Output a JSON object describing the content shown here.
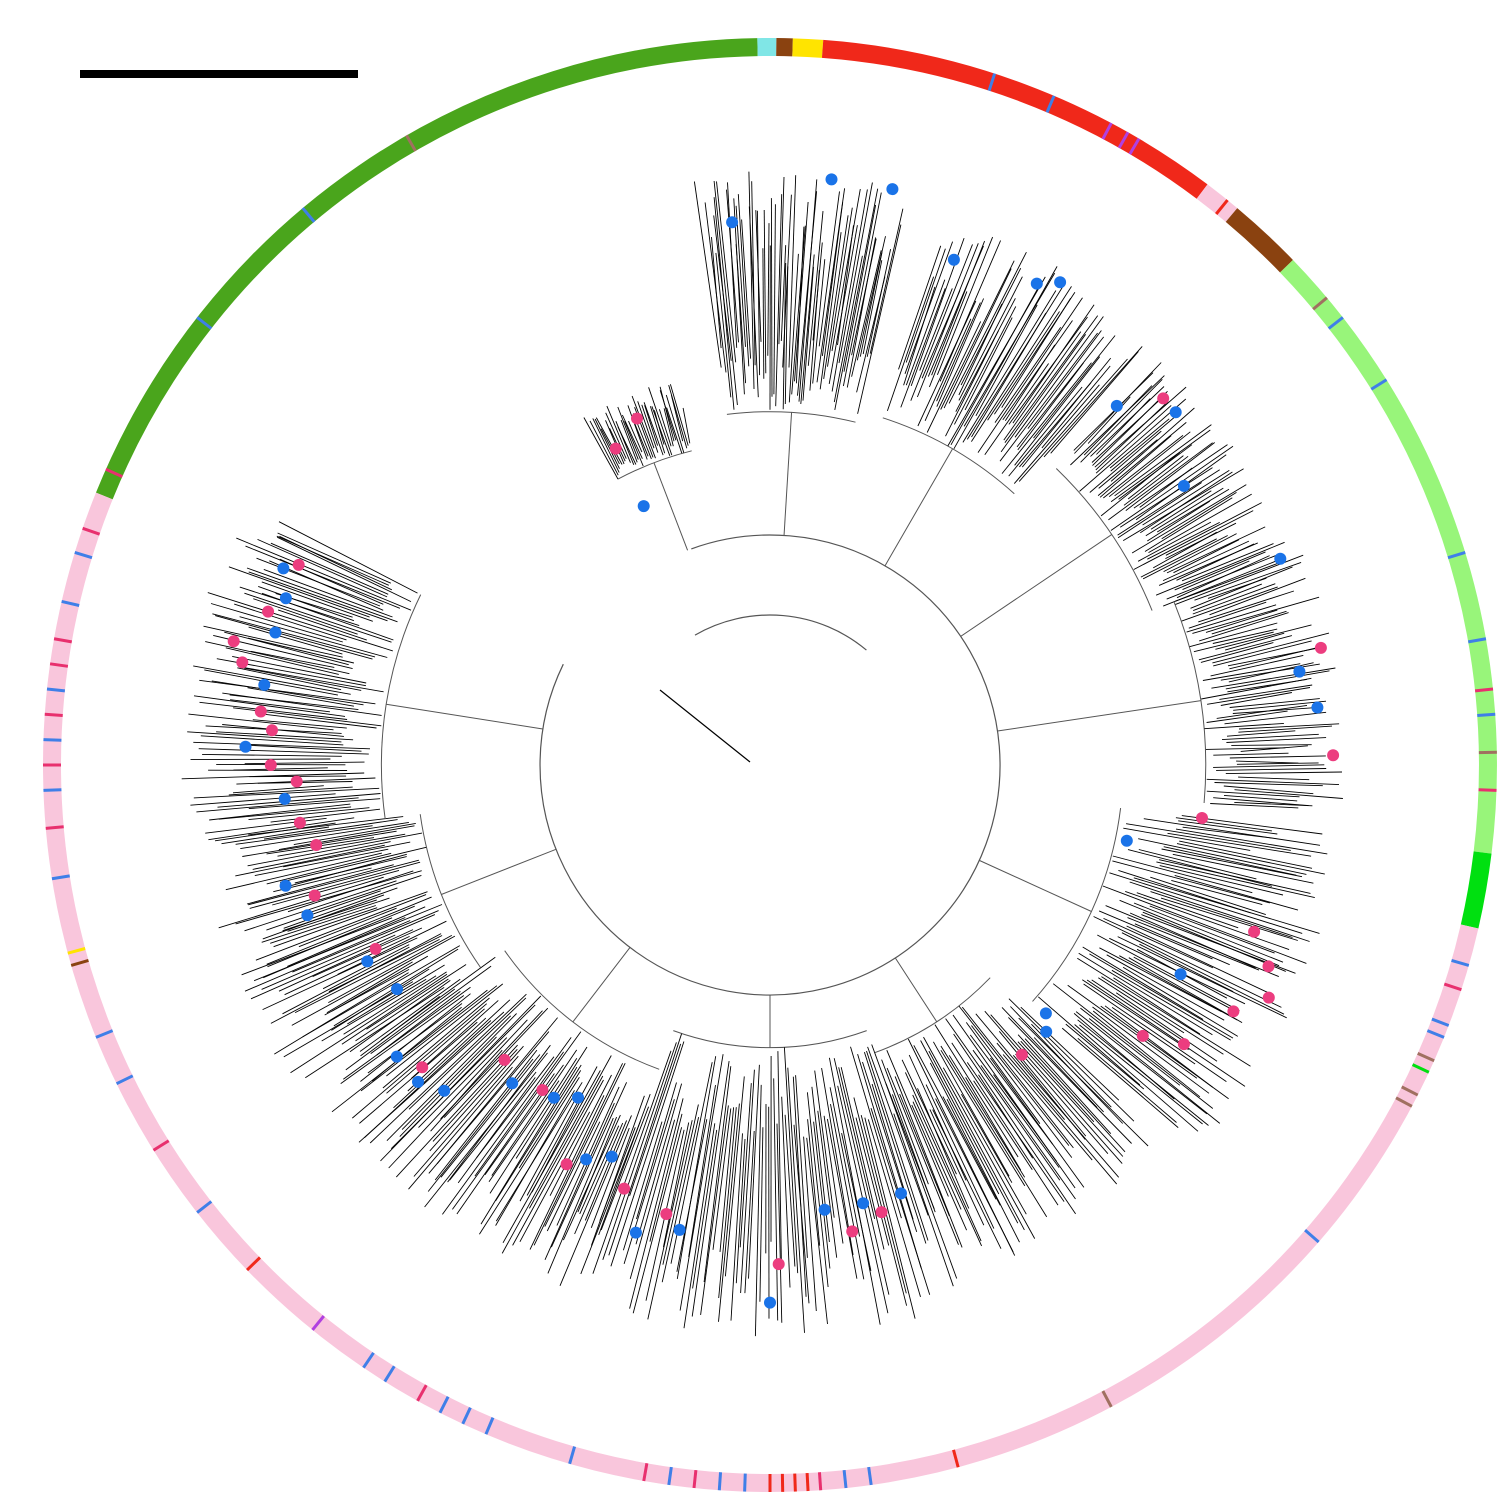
{
  "figure": {
    "title": "",
    "scale_bar_label": ""
  },
  "colors": {
    "background": "#ffffff",
    "branch": "#000000",
    "inner_branch": "#555555",
    "tip_blue": "#1a73e8",
    "tip_pink": "#ec3d7f",
    "ring_dark_green": "#4aa51c",
    "ring_red": "#f0281a",
    "ring_brown": "#8a4210",
    "ring_light_green": "#98f57a",
    "ring_bright_green": "#00e010",
    "ring_pink": "#f9c6dc",
    "ring_yellow": "#ffe400",
    "ring_purple": "#b040e0",
    "ring_cyan": "#80e6e6",
    "ring_stripe_blue": "#3f7fe8",
    "ring_stripe_magenta": "#e8306e",
    "ring_stripe_tan": "#a07060"
  },
  "legend_ring": {
    "segments": [
      {
        "name": "segment-dark-green",
        "color": "#4aa51c",
        "from_deg": -68,
        "to_deg": -1
      },
      {
        "name": "segment-cyan",
        "color": "#80e6e6",
        "from_deg": -1,
        "to_deg": 0.5
      },
      {
        "name": "segment-brown-small",
        "color": "#8a4210",
        "from_deg": 0.5,
        "to_deg": 1.8
      },
      {
        "name": "segment-yellow",
        "color": "#ffe400",
        "from_deg": 1.8,
        "to_deg": 4.2
      },
      {
        "name": "segment-red",
        "color": "#f0281a",
        "from_deg": 4.2,
        "to_deg": 37
      },
      {
        "name": "segment-pink-small",
        "color": "#f9c6dc",
        "from_deg": 37,
        "to_deg": 40
      },
      {
        "name": "segment-brown",
        "color": "#8a4210",
        "from_deg": 40,
        "to_deg": 46
      },
      {
        "name": "segment-light-green",
        "color": "#98f57a",
        "from_deg": 46,
        "to_deg": 97
      },
      {
        "name": "segment-bright-green",
        "color": "#00e010",
        "from_deg": 97,
        "to_deg": 103
      },
      {
        "name": "segment-pink",
        "color": "#f9c6dc",
        "from_deg": 103,
        "to_deg": 292
      }
    ],
    "stripes": [
      {
        "color": "#3f7fe8",
        "deg": -40
      },
      {
        "color": "#a07060",
        "deg": -30
      },
      {
        "color": "#3f7fe8",
        "deg": -52
      },
      {
        "color": "#e8306e",
        "deg": -66
      },
      {
        "color": "#3f7fe8",
        "deg": 18
      },
      {
        "color": "#3f7fe8",
        "deg": 23
      },
      {
        "color": "#b040e0",
        "deg": 28
      },
      {
        "color": "#b040e0",
        "deg": 29.5
      },
      {
        "color": "#b040e0",
        "deg": 30.5
      },
      {
        "color": "#f0281a",
        "deg": 39
      },
      {
        "color": "#a07060",
        "deg": 50
      },
      {
        "color": "#3f7fe8",
        "deg": 52
      },
      {
        "color": "#3f7fe8",
        "deg": 58
      },
      {
        "color": "#3f7fe8",
        "deg": 73
      },
      {
        "color": "#3f7fe8",
        "deg": 80
      },
      {
        "color": "#e8306e",
        "deg": 84
      },
      {
        "color": "#3f7fe8",
        "deg": 86
      },
      {
        "color": "#a07060",
        "deg": 89
      },
      {
        "color": "#e8306e",
        "deg": 92
      },
      {
        "color": "#3f7fe8",
        "deg": 106
      },
      {
        "color": "#e8306e",
        "deg": 108
      },
      {
        "color": "#3f7fe8",
        "deg": 111
      },
      {
        "color": "#3f7fe8",
        "deg": 112
      },
      {
        "color": "#a07060",
        "deg": 114
      },
      {
        "color": "#00e010",
        "deg": 115
      },
      {
        "color": "#a07060",
        "deg": 117
      },
      {
        "color": "#a07060",
        "deg": 118
      },
      {
        "color": "#3f7fe8",
        "deg": 131
      },
      {
        "color": "#a07060",
        "deg": 152
      },
      {
        "color": "#f0281a",
        "deg": 165
      },
      {
        "color": "#3f7fe8",
        "deg": 172
      },
      {
        "color": "#3f7fe8",
        "deg": 174
      },
      {
        "color": "#e8306e",
        "deg": 176
      },
      {
        "color": "#f0281a",
        "deg": 177
      },
      {
        "color": "#f0281a",
        "deg": 178
      },
      {
        "color": "#f0281a",
        "deg": 179
      },
      {
        "color": "#f0281a",
        "deg": 180
      },
      {
        "color": "#3f7fe8",
        "deg": 182
      },
      {
        "color": "#3f7fe8",
        "deg": 184
      },
      {
        "color": "#e8306e",
        "deg": 186
      },
      {
        "color": "#3f7fe8",
        "deg": 188
      },
      {
        "color": "#e8306e",
        "deg": 190
      },
      {
        "color": "#3f7fe8",
        "deg": 196
      },
      {
        "color": "#3f7fe8",
        "deg": 203
      },
      {
        "color": "#3f7fe8",
        "deg": 205
      },
      {
        "color": "#3f7fe8",
        "deg": 207
      },
      {
        "color": "#e8306e",
        "deg": 209
      },
      {
        "color": "#3f7fe8",
        "deg": 212
      },
      {
        "color": "#3f7fe8",
        "deg": 214
      },
      {
        "color": "#b040e0",
        "deg": 219
      },
      {
        "color": "#f0281a",
        "deg": 226
      },
      {
        "color": "#3f7fe8",
        "deg": 232
      },
      {
        "color": "#e8306e",
        "deg": 238
      },
      {
        "color": "#3f7fe8",
        "deg": 244
      },
      {
        "color": "#3f7fe8",
        "deg": 248
      },
      {
        "color": "#8a4210",
        "deg": 254
      },
      {
        "color": "#ffe400",
        "deg": 255
      },
      {
        "color": "#3f7fe8",
        "deg": 261
      },
      {
        "color": "#e8306e",
        "deg": 265
      },
      {
        "color": "#3f7fe8",
        "deg": 268
      },
      {
        "color": "#e8306e",
        "deg": 270
      },
      {
        "color": "#3f7fe8",
        "deg": 272
      },
      {
        "color": "#e8306e",
        "deg": 274
      },
      {
        "color": "#3f7fe8",
        "deg": 276
      },
      {
        "color": "#e8306e",
        "deg": 278
      },
      {
        "color": "#e8306e",
        "deg": 280
      },
      {
        "color": "#3f7fe8",
        "deg": 283
      },
      {
        "color": "#3f7fe8",
        "deg": 287
      },
      {
        "color": "#e8306e",
        "deg": 289
      }
    ]
  },
  "clades": [
    {
      "name": "clade-top-left",
      "from_deg": -28,
      "to_deg": -14,
      "depth": 0.55,
      "tip": 0.62,
      "density": 40
    },
    {
      "name": "clade-top",
      "from_deg": -7,
      "to_deg": 14,
      "depth": 0.6,
      "tip": 0.93,
      "density": 70
    },
    {
      "name": "clade-top-right",
      "from_deg": 18,
      "to_deg": 42,
      "depth": 0.62,
      "tip": 0.9,
      "density": 70
    },
    {
      "name": "clade-right-upper",
      "from_deg": 44,
      "to_deg": 68,
      "depth": 0.7,
      "tip": 0.88,
      "density": 70
    },
    {
      "name": "clade-right",
      "from_deg": 68,
      "to_deg": 95,
      "depth": 0.74,
      "tip": 0.9,
      "density": 70
    },
    {
      "name": "clade-right-lower",
      "from_deg": 97,
      "to_deg": 132,
      "depth": 0.6,
      "tip": 0.9,
      "density": 90
    },
    {
      "name": "clade-bottom-right",
      "from_deg": 134,
      "to_deg": 160,
      "depth": 0.52,
      "tip": 0.86,
      "density": 70
    },
    {
      "name": "clade-bottom",
      "from_deg": 160,
      "to_deg": 200,
      "depth": 0.48,
      "tip": 0.9,
      "density": 90
    },
    {
      "name": "clade-bottom-left",
      "from_deg": 200,
      "to_deg": 235,
      "depth": 0.55,
      "tip": 0.88,
      "density": 90
    },
    {
      "name": "clade-left-lower",
      "from_deg": 235,
      "to_deg": 262,
      "depth": 0.6,
      "tip": 0.9,
      "density": 80
    },
    {
      "name": "clade-left",
      "from_deg": 262,
      "to_deg": 296,
      "depth": 0.66,
      "tip": 0.92,
      "density": 90
    }
  ],
  "tips": [
    {
      "group": "blue",
      "deg": 6,
      "r": 0.92
    },
    {
      "group": "blue",
      "deg": 12,
      "r": 0.92
    },
    {
      "group": "blue",
      "deg": -4,
      "r": 0.85
    },
    {
      "group": "pink",
      "deg": -21,
      "r": 0.58
    },
    {
      "group": "pink",
      "deg": -26,
      "r": 0.55
    },
    {
      "group": "blue",
      "deg": -26,
      "r": 0.45
    },
    {
      "group": "blue",
      "deg": 20,
      "r": 0.84
    },
    {
      "group": "blue",
      "deg": 29,
      "r": 0.86
    },
    {
      "group": "blue",
      "deg": 31,
      "r": 0.88
    },
    {
      "group": "blue",
      "deg": 44,
      "r": 0.78
    },
    {
      "group": "pink",
      "deg": 47,
      "r": 0.84
    },
    {
      "group": "blue",
      "deg": 49,
      "r": 0.84
    },
    {
      "group": "blue",
      "deg": 56,
      "r": 0.78
    },
    {
      "group": "blue",
      "deg": 68,
      "r": 0.86
    },
    {
      "group": "pink",
      "deg": 78,
      "r": 0.88
    },
    {
      "group": "blue",
      "deg": 80,
      "r": 0.84
    },
    {
      "group": "blue",
      "deg": 84,
      "r": 0.86
    },
    {
      "group": "pink",
      "deg": 89,
      "r": 0.88
    },
    {
      "group": "pink",
      "deg": 97,
      "r": 0.68
    },
    {
      "group": "blue",
      "deg": 102,
      "r": 0.57
    },
    {
      "group": "pink",
      "deg": 109,
      "r": 0.8
    },
    {
      "group": "pink",
      "deg": 112,
      "r": 0.84
    },
    {
      "group": "pink",
      "deg": 115,
      "r": 0.86
    },
    {
      "group": "pink",
      "deg": 118,
      "r": 0.82
    },
    {
      "group": "blue",
      "deg": 117,
      "r": 0.72
    },
    {
      "group": "pink",
      "deg": 124,
      "r": 0.78
    },
    {
      "group": "pink",
      "deg": 126,
      "r": 0.72
    },
    {
      "group": "blue",
      "deg": 132,
      "r": 0.58
    },
    {
      "group": "blue",
      "deg": 134,
      "r": 0.6
    },
    {
      "group": "pink",
      "deg": 139,
      "r": 0.6
    },
    {
      "group": "blue",
      "deg": 163,
      "r": 0.7
    },
    {
      "group": "pink",
      "deg": 166,
      "r": 0.72
    },
    {
      "group": "blue",
      "deg": 168,
      "r": 0.7
    },
    {
      "group": "pink",
      "deg": 170,
      "r": 0.74
    },
    {
      "group": "blue",
      "deg": 173,
      "r": 0.7
    },
    {
      "group": "pink",
      "deg": 179,
      "r": 0.78
    },
    {
      "group": "blue",
      "deg": 180,
      "r": 0.84
    },
    {
      "group": "blue",
      "deg": 191,
      "r": 0.74
    },
    {
      "group": "pink",
      "deg": 193,
      "r": 0.72
    },
    {
      "group": "blue",
      "deg": 196,
      "r": 0.76
    },
    {
      "group": "pink",
      "deg": 199,
      "r": 0.7
    },
    {
      "group": "blue",
      "deg": 202,
      "r": 0.66
    },
    {
      "group": "blue",
      "deg": 205,
      "r": 0.68
    },
    {
      "group": "pink",
      "deg": 207,
      "r": 0.7
    },
    {
      "group": "blue",
      "deg": 210,
      "r": 0.6
    },
    {
      "group": "blue",
      "deg": 213,
      "r": 0.62
    },
    {
      "group": "pink",
      "deg": 215,
      "r": 0.62
    },
    {
      "group": "blue",
      "deg": 219,
      "r": 0.64
    },
    {
      "group": "pink",
      "deg": 222,
      "r": 0.62
    },
    {
      "group": "blue",
      "deg": 225,
      "r": 0.72
    },
    {
      "group": "blue",
      "deg": 228,
      "r": 0.74
    },
    {
      "group": "pink",
      "deg": 229,
      "r": 0.72
    },
    {
      "group": "blue",
      "deg": 232,
      "r": 0.74
    },
    {
      "group": "blue",
      "deg": 239,
      "r": 0.68
    },
    {
      "group": "blue",
      "deg": 244,
      "r": 0.7
    },
    {
      "group": "pink",
      "deg": 245,
      "r": 0.68
    },
    {
      "group": "blue",
      "deg": 252,
      "r": 0.76
    },
    {
      "group": "pink",
      "deg": 254,
      "r": 0.74
    },
    {
      "group": "blue",
      "deg": 256,
      "r": 0.78
    },
    {
      "group": "pink",
      "deg": 260,
      "r": 0.72
    },
    {
      "group": "pink",
      "deg": 263,
      "r": 0.74
    },
    {
      "group": "blue",
      "deg": 266,
      "r": 0.76
    },
    {
      "group": "pink",
      "deg": 268,
      "r": 0.74
    },
    {
      "group": "pink",
      "deg": 270,
      "r": 0.78
    },
    {
      "group": "blue",
      "deg": 272,
      "r": 0.82
    },
    {
      "group": "pink",
      "deg": 274,
      "r": 0.78
    },
    {
      "group": "pink",
      "deg": 276,
      "r": 0.8
    },
    {
      "group": "blue",
      "deg": 279,
      "r": 0.8
    },
    {
      "group": "pink",
      "deg": 281,
      "r": 0.84
    },
    {
      "group": "pink",
      "deg": 283,
      "r": 0.86
    },
    {
      "group": "blue",
      "deg": 285,
      "r": 0.8
    },
    {
      "group": "pink",
      "deg": 287,
      "r": 0.82
    },
    {
      "group": "blue",
      "deg": 289,
      "r": 0.8
    },
    {
      "group": "blue",
      "deg": 292,
      "r": 0.82
    },
    {
      "group": "pink",
      "deg": 293,
      "r": 0.8
    }
  ]
}
